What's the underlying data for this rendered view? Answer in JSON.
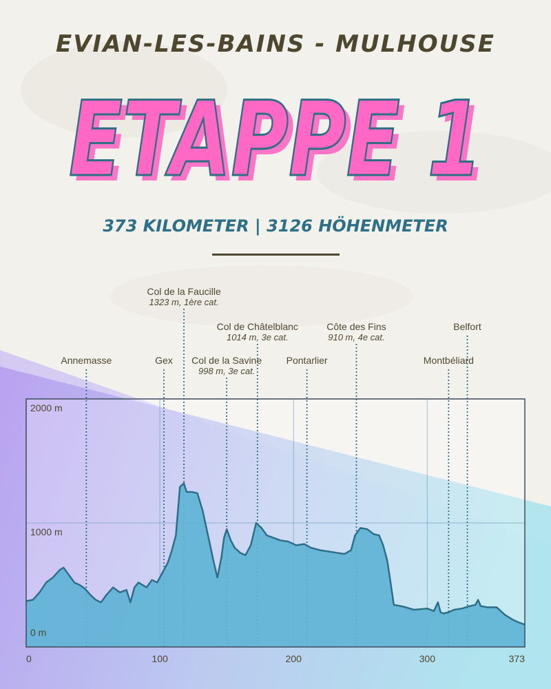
{
  "header": {
    "route": "EVIAN-LES-BAINS - MULHOUSE",
    "title": "ETAPPE 1",
    "subtitle": "373 KILOMETER | 3126 HÖHENMETER"
  },
  "colors": {
    "title_fill": "#ff68c4",
    "title_outline": "#2d6e82",
    "profile_fill": "#5fb3d6",
    "profile_stroke": "#2e6f87",
    "text": "#4e4730"
  },
  "chart_data": {
    "type": "area",
    "xlim": [
      0,
      373
    ],
    "ylim": [
      0,
      2000
    ],
    "x_ticks": [
      0,
      100,
      200,
      300,
      373
    ],
    "y_ticks": [
      {
        "value": 2000,
        "label": "2000 m"
      },
      {
        "value": 1000,
        "label": "1000 m"
      },
      {
        "value": 0,
        "label": "0 m"
      }
    ],
    "grid": true,
    "x": [
      0,
      5,
      10,
      15,
      20,
      25,
      28,
      32,
      36,
      40,
      44,
      48,
      52,
      56,
      60,
      65,
      70,
      75,
      78,
      81,
      84,
      87,
      90,
      94,
      98,
      101,
      103,
      106,
      109,
      112,
      115,
      118,
      120,
      124,
      128,
      132,
      136,
      140,
      143,
      146,
      148,
      150,
      153,
      156,
      160,
      164,
      168,
      172,
      174,
      176,
      180,
      185,
      190,
      196,
      202,
      208,
      213,
      220,
      226,
      232,
      238,
      243,
      246,
      250,
      255,
      260,
      264,
      267,
      270,
      272,
      275,
      280,
      284,
      290,
      300,
      305,
      308,
      310,
      312,
      316,
      320,
      326,
      332,
      336,
      338,
      340,
      345,
      352,
      358,
      364,
      368,
      373
    ],
    "elevation": [
      370,
      380,
      440,
      520,
      560,
      620,
      640,
      580,
      520,
      500,
      470,
      420,
      380,
      360,
      420,
      480,
      440,
      460,
      360,
      480,
      520,
      500,
      480,
      540,
      520,
      580,
      620,
      680,
      780,
      900,
      1290,
      1320,
      1250,
      1250,
      1240,
      1100,
      900,
      700,
      560,
      720,
      880,
      950,
      860,
      800,
      760,
      740,
      820,
      1000,
      980,
      960,
      900,
      880,
      860,
      850,
      820,
      830,
      800,
      780,
      770,
      760,
      750,
      780,
      900,
      960,
      950,
      910,
      900,
      820,
      700,
      560,
      340,
      330,
      320,
      300,
      310,
      290,
      360,
      280,
      270,
      280,
      300,
      310,
      330,
      340,
      380,
      330,
      320,
      320,
      260,
      220,
      200,
      180
    ],
    "annotations": [
      {
        "label": "Annemasse",
        "detail": "",
        "km": 45,
        "row": 3
      },
      {
        "label": "Gex",
        "detail": "",
        "km": 103,
        "row": 3
      },
      {
        "label": "Col de la Faucille",
        "detail": "1323 m, 1ère cat.",
        "km": 118,
        "row": 1
      },
      {
        "label": "Col de la Savine",
        "detail": "998 m, 3e cat.",
        "km": 150,
        "row": 3
      },
      {
        "label": "Col de Châtelblanc",
        "detail": "1014 m, 3e cat.",
        "km": 173,
        "row": 2
      },
      {
        "label": "Pontarlier",
        "detail": "",
        "km": 210,
        "row": 3
      },
      {
        "label": "Côte des Fins",
        "detail": "910 m, 4e cat.",
        "km": 247,
        "row": 2
      },
      {
        "label": "Montbéliard",
        "detail": "",
        "km": 316,
        "row": 3
      },
      {
        "label": "Belfort",
        "detail": "",
        "km": 330,
        "row": 2
      }
    ]
  }
}
